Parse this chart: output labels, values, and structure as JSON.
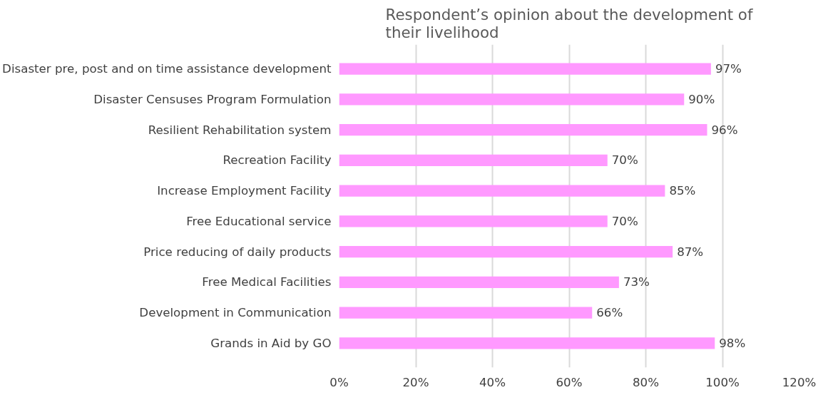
{
  "chart_data": {
    "type": "bar",
    "orientation": "horizontal",
    "title": "Respondent’s opinion about the development of their livelihood",
    "categories": [
      "Disaster pre, post and on time assistance development",
      "Disaster Censuses Program Formulation",
      "Resilient Rehabilitation system",
      "Recreation Facility",
      "Increase Employment Facility",
      "Free Educational service",
      "Price reducing of daily products",
      "Free Medical Facilities",
      "Development in Communication",
      "Grands in Aid by GO"
    ],
    "values": [
      97,
      90,
      96,
      70,
      85,
      70,
      87,
      73,
      66,
      98
    ],
    "value_labels": [
      "97%",
      "90%",
      "96%",
      "70%",
      "85%",
      "70%",
      "87%",
      "73%",
      "66%",
      "98%"
    ],
    "color": "#ff99ff",
    "xlim": [
      0,
      120
    ],
    "xticks": [
      {
        "value": 0,
        "label": "0%"
      },
      {
        "value": 20,
        "label": "20%"
      },
      {
        "value": 40,
        "label": "40%"
      },
      {
        "value": 60,
        "label": "60%"
      },
      {
        "value": 80,
        "label": "80%"
      },
      {
        "value": 100,
        "label": "100%"
      },
      {
        "value": 120,
        "label": "120%"
      }
    ],
    "grid": "x"
  }
}
